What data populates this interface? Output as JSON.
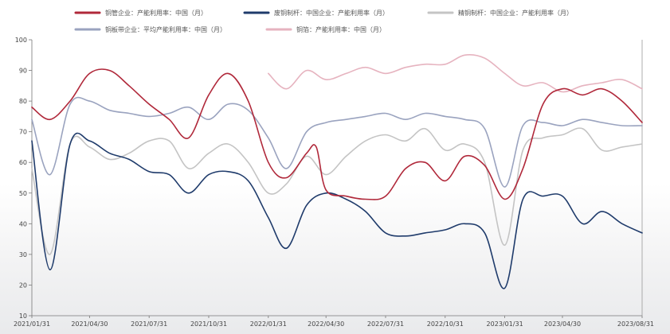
{
  "chart_data": {
    "type": "line",
    "title": "",
    "xlabel": "",
    "ylabel": "",
    "ylim": [
      10,
      100
    ],
    "yticks": [
      10,
      20,
      30,
      40,
      50,
      60,
      70,
      80,
      90,
      100
    ],
    "xlim": [
      "2021-01-31",
      "2023-08-31"
    ],
    "xticks": [
      "2021/01/31",
      "2021/04/30",
      "2021/07/31",
      "2021/10/31",
      "2022/01/31",
      "2022/04/30",
      "2022/07/31",
      "2022/10/31",
      "2023/01/31",
      "2023/04/30",
      "2023/08/31"
    ],
    "legend_position": "top-left",
    "grid": false,
    "series": [
      {
        "name": "铜管企业：产能利用率：中国（月）",
        "color": "#b0283a",
        "points": [
          [
            "2021-01-31",
            78
          ],
          [
            "2021-02-28",
            74
          ],
          [
            "2021-03-31",
            80
          ],
          [
            "2021-04-30",
            89
          ],
          [
            "2021-05-31",
            90
          ],
          [
            "2021-06-30",
            85
          ],
          [
            "2021-07-31",
            79
          ],
          [
            "2021-08-31",
            74
          ],
          [
            "2021-09-30",
            68
          ],
          [
            "2021-10-31",
            82
          ],
          [
            "2021-11-30",
            89
          ],
          [
            "2021-12-31",
            80
          ],
          [
            "2022-01-31",
            60
          ],
          [
            "2022-02-28",
            55
          ],
          [
            "2022-03-31",
            63
          ],
          [
            "2022-04-15",
            65
          ],
          [
            "2022-04-30",
            51
          ],
          [
            "2022-05-31",
            49
          ],
          [
            "2022-06-30",
            48
          ],
          [
            "2022-07-31",
            49
          ],
          [
            "2022-08-31",
            58
          ],
          [
            "2022-09-30",
            60
          ],
          [
            "2022-10-31",
            54
          ],
          [
            "2022-11-30",
            62
          ],
          [
            "2022-12-31",
            59
          ],
          [
            "2023-01-31",
            48
          ],
          [
            "2023-02-28",
            58
          ],
          [
            "2023-03-31",
            79
          ],
          [
            "2023-04-30",
            84
          ],
          [
            "2023-05-31",
            82
          ],
          [
            "2023-06-30",
            84
          ],
          [
            "2023-07-31",
            80
          ],
          [
            "2023-08-31",
            73
          ]
        ]
      },
      {
        "name": "废铜制杆：中国企业：产能利用率（月）",
        "color": "#1f3b6b",
        "points": [
          [
            "2021-01-31",
            67
          ],
          [
            "2021-02-28",
            25
          ],
          [
            "2021-03-31",
            66
          ],
          [
            "2021-04-30",
            67
          ],
          [
            "2021-05-31",
            63
          ],
          [
            "2021-06-30",
            61
          ],
          [
            "2021-07-31",
            57
          ],
          [
            "2021-08-31",
            56
          ],
          [
            "2021-09-30",
            50
          ],
          [
            "2021-10-31",
            56
          ],
          [
            "2021-11-30",
            57
          ],
          [
            "2021-12-31",
            54
          ],
          [
            "2022-01-31",
            42
          ],
          [
            "2022-02-28",
            32
          ],
          [
            "2022-03-31",
            46
          ],
          [
            "2022-04-30",
            50
          ],
          [
            "2022-05-31",
            48
          ],
          [
            "2022-06-30",
            44
          ],
          [
            "2022-07-31",
            37
          ],
          [
            "2022-08-31",
            36
          ],
          [
            "2022-09-30",
            37
          ],
          [
            "2022-10-31",
            38
          ],
          [
            "2022-11-30",
            40
          ],
          [
            "2022-12-31",
            37
          ],
          [
            "2023-01-31",
            19
          ],
          [
            "2023-02-28",
            48
          ],
          [
            "2023-03-31",
            49
          ],
          [
            "2023-04-30",
            49
          ],
          [
            "2023-05-31",
            40
          ],
          [
            "2023-06-30",
            44
          ],
          [
            "2023-07-31",
            40
          ],
          [
            "2023-08-31",
            37
          ]
        ]
      },
      {
        "name": "精铜制杆：中国企业：产能利用率（月）",
        "color": "#c4c4c4",
        "points": [
          [
            "2021-01-31",
            58
          ],
          [
            "2021-02-28",
            30
          ],
          [
            "2021-03-31",
            66
          ],
          [
            "2021-04-30",
            65
          ],
          [
            "2021-05-31",
            61
          ],
          [
            "2021-06-30",
            63
          ],
          [
            "2021-07-31",
            67
          ],
          [
            "2021-08-31",
            67
          ],
          [
            "2021-09-30",
            58
          ],
          [
            "2021-10-31",
            63
          ],
          [
            "2021-11-30",
            66
          ],
          [
            "2021-12-31",
            60
          ],
          [
            "2022-01-31",
            50
          ],
          [
            "2022-02-28",
            53
          ],
          [
            "2022-03-31",
            62
          ],
          [
            "2022-04-30",
            56
          ],
          [
            "2022-05-31",
            62
          ],
          [
            "2022-06-30",
            67
          ],
          [
            "2022-07-31",
            69
          ],
          [
            "2022-08-31",
            67
          ],
          [
            "2022-09-30",
            71
          ],
          [
            "2022-10-31",
            64
          ],
          [
            "2022-11-30",
            66
          ],
          [
            "2022-12-31",
            60
          ],
          [
            "2023-01-31",
            33
          ],
          [
            "2023-02-28",
            64
          ],
          [
            "2023-03-31",
            68
          ],
          [
            "2023-04-30",
            69
          ],
          [
            "2023-05-31",
            71
          ],
          [
            "2023-06-30",
            64
          ],
          [
            "2023-07-31",
            65
          ],
          [
            "2023-08-31",
            66
          ]
        ]
      },
      {
        "name": "铜板带企业：平均产能利用率：中国（月）",
        "color": "#9aa3bf",
        "points": [
          [
            "2021-01-31",
            74
          ],
          [
            "2021-02-28",
            56
          ],
          [
            "2021-03-31",
            79
          ],
          [
            "2021-04-30",
            80
          ],
          [
            "2021-05-31",
            77
          ],
          [
            "2021-06-30",
            76
          ],
          [
            "2021-07-31",
            75
          ],
          [
            "2021-08-31",
            76
          ],
          [
            "2021-09-30",
            78
          ],
          [
            "2021-10-31",
            74
          ],
          [
            "2021-11-30",
            79
          ],
          [
            "2021-12-31",
            77
          ],
          [
            "2022-01-31",
            68
          ],
          [
            "2022-02-28",
            58
          ],
          [
            "2022-03-31",
            70
          ],
          [
            "2022-04-30",
            73
          ],
          [
            "2022-05-31",
            74
          ],
          [
            "2022-06-30",
            75
          ],
          [
            "2022-07-31",
            76
          ],
          [
            "2022-08-31",
            74
          ],
          [
            "2022-09-30",
            76
          ],
          [
            "2022-10-31",
            75
          ],
          [
            "2022-11-30",
            74
          ],
          [
            "2022-12-31",
            71
          ],
          [
            "2023-01-31",
            52
          ],
          [
            "2023-02-28",
            72
          ],
          [
            "2023-03-31",
            73
          ],
          [
            "2023-04-30",
            72
          ],
          [
            "2023-05-31",
            74
          ],
          [
            "2023-06-30",
            73
          ],
          [
            "2023-07-31",
            72
          ],
          [
            "2023-08-31",
            72
          ]
        ]
      },
      {
        "name": "铜箔：产能利用率：中国（月）",
        "color": "#e6b3bf",
        "points": [
          [
            "2022-01-31",
            89
          ],
          [
            "2022-02-28",
            84
          ],
          [
            "2022-03-31",
            90
          ],
          [
            "2022-04-30",
            87
          ],
          [
            "2022-05-31",
            89
          ],
          [
            "2022-06-30",
            91
          ],
          [
            "2022-07-31",
            89
          ],
          [
            "2022-08-31",
            91
          ],
          [
            "2022-09-30",
            92
          ],
          [
            "2022-10-31",
            92
          ],
          [
            "2022-11-30",
            95
          ],
          [
            "2022-12-31",
            94
          ],
          [
            "2023-01-31",
            89
          ],
          [
            "2023-02-28",
            85
          ],
          [
            "2023-03-31",
            86
          ],
          [
            "2023-04-30",
            83
          ],
          [
            "2023-05-31",
            85
          ],
          [
            "2023-06-30",
            86
          ],
          [
            "2023-07-31",
            87
          ],
          [
            "2023-08-31",
            84
          ]
        ]
      }
    ]
  }
}
